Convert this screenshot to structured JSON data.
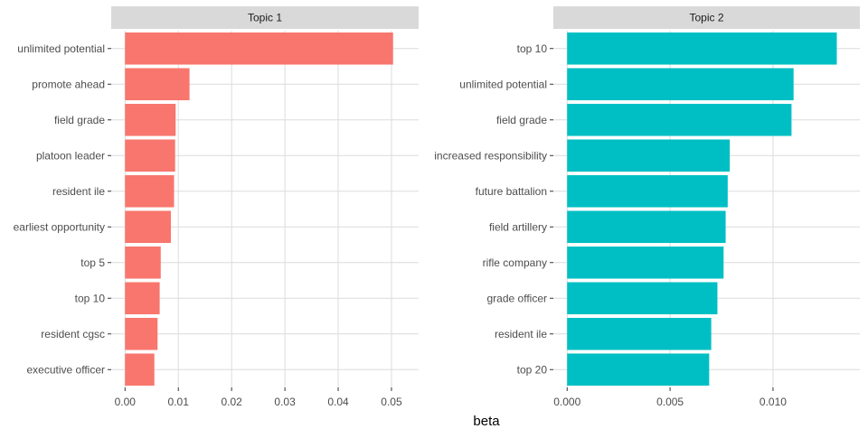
{
  "chart_data": {
    "type": "bar",
    "orientation": "horizontal",
    "xlabel": "beta",
    "ylabel": "",
    "grid": true,
    "legend": "none",
    "panels": [
      {
        "title": "Topic 1",
        "color": "#F8766D",
        "xlim": [
          0,
          0.0525
        ],
        "ticks": [
          0.0,
          0.01,
          0.02,
          0.03,
          0.04,
          0.05
        ],
        "tick_labels": [
          "0.00",
          "0.01",
          "0.02",
          "0.03",
          "0.04",
          "0.05"
        ],
        "categories": [
          "unlimited potential",
          "promote ahead",
          "field grade",
          "platoon leader",
          "resident ile",
          "earliest opportunity",
          "top 5",
          "top 10",
          "resident cgsc",
          "executive officer"
        ],
        "values": [
          0.0503,
          0.0121,
          0.0095,
          0.0094,
          0.0092,
          0.0086,
          0.0067,
          0.0065,
          0.0061,
          0.0055
        ]
      },
      {
        "title": "Topic 2",
        "color": "#00BFC4",
        "xlim": [
          0,
          0.01355
        ],
        "ticks": [
          0.0,
          0.005,
          0.01
        ],
        "tick_labels": [
          "0.000",
          "0.005",
          "0.010"
        ],
        "categories": [
          "top 10",
          "unlimited potential",
          "field grade",
          "increased responsibility",
          "future battalion",
          "field artillery",
          "rifle company",
          "grade officer",
          "resident ile",
          "top 20"
        ],
        "values": [
          0.0131,
          0.011,
          0.0109,
          0.0079,
          0.0078,
          0.0077,
          0.0076,
          0.0073,
          0.007,
          0.0069
        ]
      }
    ]
  }
}
